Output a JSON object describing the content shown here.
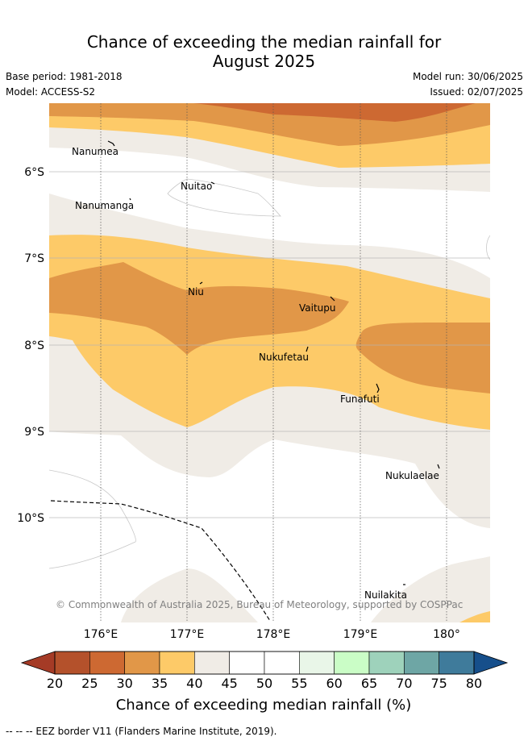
{
  "title_line1": "Chance of exceeding the median rainfall for",
  "title_line2": "August 2025",
  "base_period": "Base period: 1981-2018",
  "model": "Model: ACCESS-S2",
  "model_run": "Model run: 30/06/2025",
  "issued": "Issued: 02/07/2025",
  "copyright": "© Commonwealth of Australia 2025, Bureau of Meteorology, supported by COSPPac",
  "lon_ticks": [
    "176°E",
    "177°E",
    "178°E",
    "179°E",
    "180°"
  ],
  "lat_ticks": [
    "6°S",
    "7°S",
    "8°S",
    "9°S",
    "10°S"
  ],
  "places": {
    "nanumea": "Nanumea",
    "nuitao": "Nuitao",
    "nanumanga": "Nanumanga",
    "niu": "Niu",
    "vaitupu": "Vaitupu",
    "nukufetau": "Nukufetau",
    "funafuti": "Funafuti",
    "nukulaelae": "Nukulaelae",
    "nuilakita": "Nuilakita"
  },
  "colorbar": {
    "title": "Chance of exceeding median rainfall (%)",
    "ticks": [
      "20",
      "25",
      "30",
      "35",
      "40",
      "45",
      "50",
      "55",
      "60",
      "65",
      "70",
      "75",
      "80"
    ],
    "colors": [
      "#b4512b",
      "#cd6932",
      "#e19748",
      "#fdca68",
      "#f0ece6",
      "#ffffff",
      "#ffffff",
      "#e9f6e8",
      "#cafdc6",
      "#9ed2bb",
      "#6ea6a5",
      "#3f7b9b"
    ],
    "low_extend_color": "#a53b26",
    "high_extend_color": "#164f8b"
  },
  "legend_eez": "-- -- -- EEZ border V11 (Flanders Marine Institute, 2019)."
}
